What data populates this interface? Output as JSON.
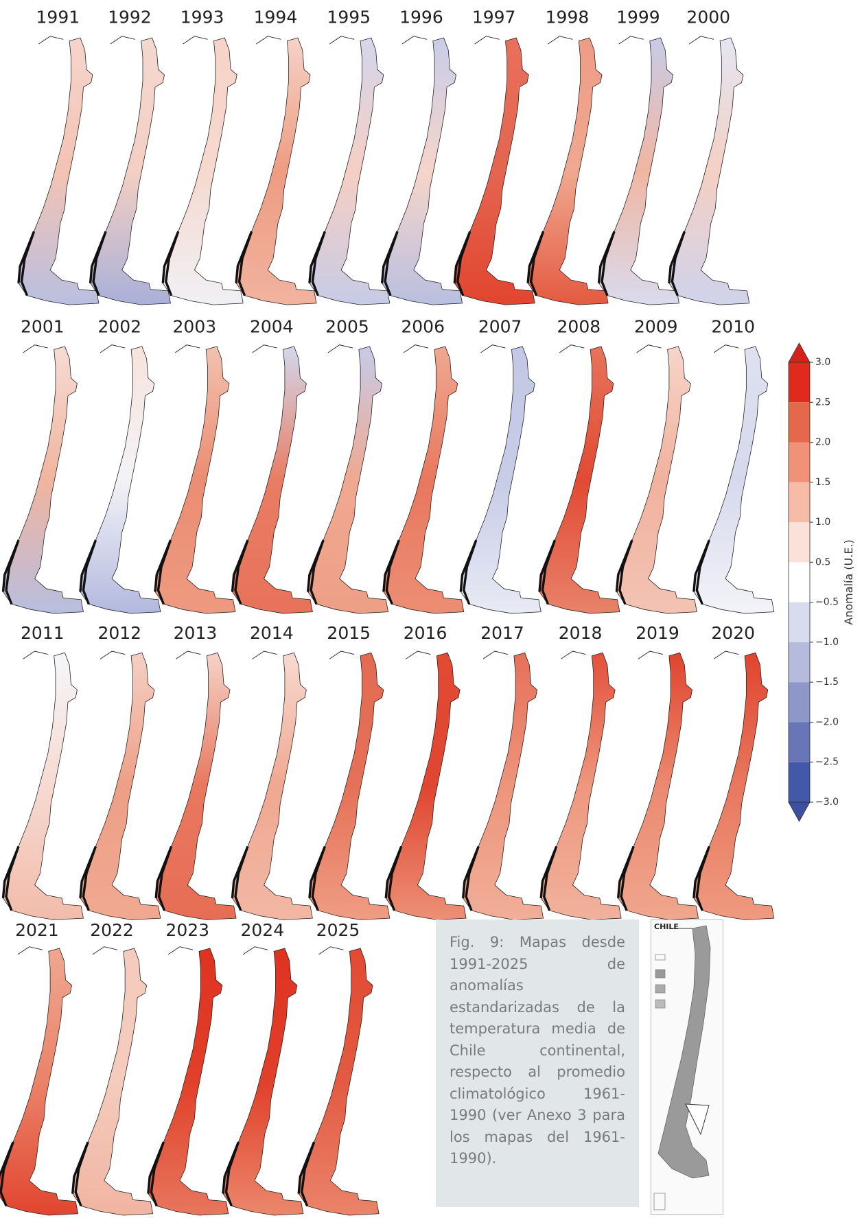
{
  "maps": [
    {
      "year": "1991",
      "colors": [
        "#f6d5cc",
        "#f3c3b4",
        "#b9bfe0"
      ]
    },
    {
      "year": "1992",
      "colors": [
        "#f3d8d0",
        "#f4cfc3",
        "#a9b0d9"
      ]
    },
    {
      "year": "1993",
      "colors": [
        "#f6d3c8",
        "#f6d9cf",
        "#f0f0f5"
      ]
    },
    {
      "year": "1994",
      "colors": [
        "#f6d2c6",
        "#ee9c82",
        "#f1b39f"
      ]
    },
    {
      "year": "1995",
      "colors": [
        "#d3d6ec",
        "#f6cfc3",
        "#c7cbe6"
      ]
    },
    {
      "year": "1996",
      "colors": [
        "#c8cde8",
        "#f6d5ca",
        "#b9bfe0"
      ]
    },
    {
      "year": "1997",
      "colors": [
        "#e8705a",
        "#e46550",
        "#e2452f"
      ]
    },
    {
      "year": "1998",
      "colors": [
        "#ef9c85",
        "#f0a890",
        "#e35a40"
      ]
    },
    {
      "year": "1999",
      "colors": [
        "#c8cce7",
        "#f1b6a2",
        "#d9dbee"
      ]
    },
    {
      "year": "2000",
      "colors": [
        "#e4e6f3",
        "#f4d0c4",
        "#cfd3eb"
      ]
    },
    {
      "year": "2001",
      "colors": [
        "#f6dcd4",
        "#f1b49f",
        "#b8bee0"
      ]
    },
    {
      "year": "2002",
      "colors": [
        "#f8e3dc",
        "#f3f3f7",
        "#b3b9de"
      ]
    },
    {
      "year": "2003",
      "colors": [
        "#f3c1b0",
        "#eb8d73",
        "#ee9a80"
      ]
    },
    {
      "year": "2004",
      "colors": [
        "#d4d7ec",
        "#e87d64",
        "#e8725a"
      ]
    },
    {
      "year": "2005",
      "colors": [
        "#c6cbe7",
        "#f0a991",
        "#ee9f86"
      ]
    },
    {
      "year": "2006",
      "colors": [
        "#f0a890",
        "#e8785f",
        "#ec8e74"
      ]
    },
    {
      "year": "2007",
      "colors": [
        "#c3c8e6",
        "#c7cce7",
        "#e8eaf4"
      ]
    },
    {
      "year": "2008",
      "colors": [
        "#e7735b",
        "#e14a33",
        "#e9826a"
      ]
    },
    {
      "year": "2009",
      "colors": [
        "#f6d5ca",
        "#f1b29d",
        "#f3c3b4"
      ]
    },
    {
      "year": "2010",
      "colors": [
        "#dfe1f0",
        "#d6d9ed",
        "#f3f3f8"
      ]
    },
    {
      "year": "2011",
      "colors": [
        "#f6f6fa",
        "#f6dad1",
        "#f2bcaa"
      ]
    },
    {
      "year": "2012",
      "colors": [
        "#f5d0c4",
        "#ee9f86",
        "#f0a991"
      ]
    },
    {
      "year": "2013",
      "colors": [
        "#f5d3c8",
        "#e8785f",
        "#e66e55"
      ]
    },
    {
      "year": "2014",
      "colors": [
        "#f6dad1",
        "#f0a891",
        "#f2b7a4"
      ]
    },
    {
      "year": "2015",
      "colors": [
        "#e46b52",
        "#e57158",
        "#ef9d84"
      ]
    },
    {
      "year": "2016",
      "colors": [
        "#e24a33",
        "#e04631",
        "#ec9076"
      ]
    },
    {
      "year": "2017",
      "colors": [
        "#e6705a",
        "#ed957b",
        "#f1ae99"
      ]
    },
    {
      "year": "2018",
      "colors": [
        "#e3503a",
        "#ee987e",
        "#f1b19c"
      ]
    },
    {
      "year": "2019",
      "colors": [
        "#e1442e",
        "#eb8a70",
        "#f0a68e"
      ]
    },
    {
      "year": "2020",
      "colors": [
        "#e1442e",
        "#e8785f",
        "#ef9a80"
      ]
    },
    {
      "year": "2021",
      "colors": [
        "#f0a790",
        "#ea8369",
        "#e2452f"
      ]
    },
    {
      "year": "2022",
      "colors": [
        "#f4cbbd",
        "#f4cbbd",
        "#f1b5a1"
      ]
    },
    {
      "year": "2023",
      "colors": [
        "#df3220",
        "#e1402a",
        "#e7765d"
      ]
    },
    {
      "year": "2024",
      "colors": [
        "#df3220",
        "#e1402a",
        "#eb876c"
      ]
    },
    {
      "year": "2025",
      "colors": [
        "#e24a33",
        "#e35a42",
        "#ea846a"
      ]
    }
  ],
  "colorbar": {
    "label": "Anomalía (U.E.)",
    "ticks": [
      {
        "value": 3,
        "label": "3.0"
      },
      {
        "value": 2.5,
        "label": "2.5"
      },
      {
        "value": 2,
        "label": "2.0"
      },
      {
        "value": 1.5,
        "label": "1.5"
      },
      {
        "value": 1,
        "label": "1.0"
      },
      {
        "value": 0.5,
        "label": "0.5"
      },
      {
        "value": -0.5,
        "label": "−0.5"
      },
      {
        "value": -1,
        "label": "−1.0"
      },
      {
        "value": -1.5,
        "label": "−1.5"
      },
      {
        "value": -2,
        "label": "−2.0"
      },
      {
        "value": -2.5,
        "label": "−2.5"
      },
      {
        "value": -3,
        "label": "−3.0"
      }
    ],
    "colors": [
      "#df2a1d",
      "#e5674c",
      "#ef9277",
      "#f6bca7",
      "#fbe1d8",
      "#ffffff",
      "#d9dbee",
      "#b6bbdd",
      "#8e97c9",
      "#6876b8",
      "#4358a6"
    ],
    "extend_colors": [
      "#d8201a",
      "#3b509f"
    ]
  },
  "caption": "Fig. 9: Mapas desde 1991-2025 de anomalías estandarizadas de la temperatura media de Chile continental, respecto al promedio climatológico 1961-1990 (ver Anexo 3 para los mapas del 1961-1990).",
  "inset": {
    "label": "CHILE"
  }
}
